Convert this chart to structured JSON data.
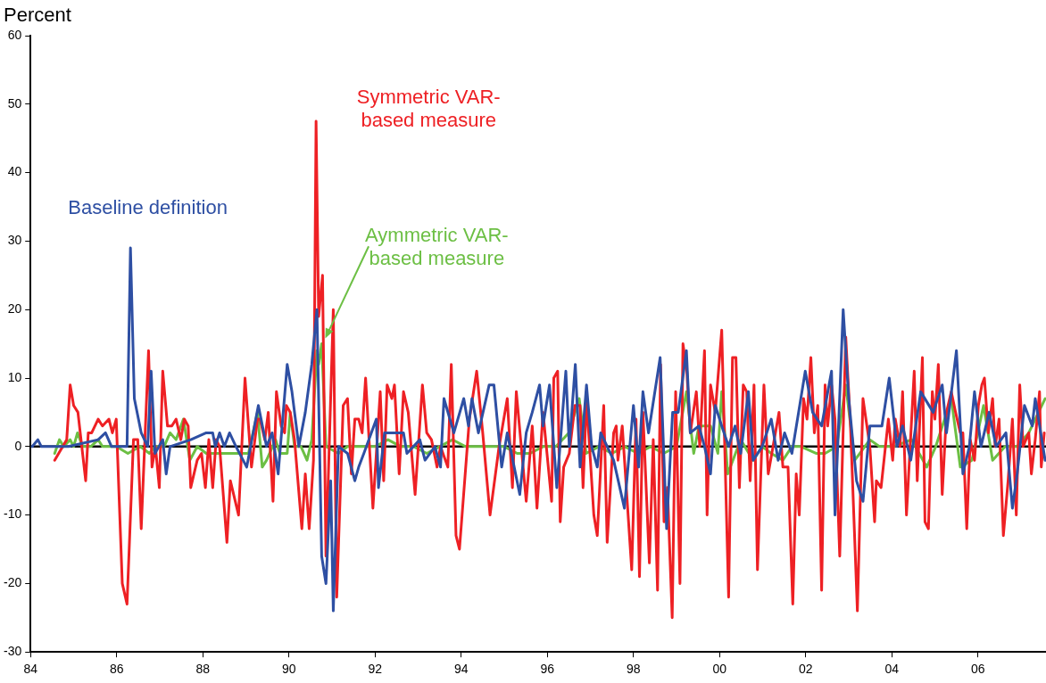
{
  "chart_data": {
    "type": "line",
    "ylabel": "Percent",
    "xlim": [
      1984,
      2007.58
    ],
    "xticks": [
      {
        "value": 1984,
        "label": "84"
      },
      {
        "value": 1986,
        "label": "86"
      },
      {
        "value": 1988,
        "label": "88"
      },
      {
        "value": 1990,
        "label": "90"
      },
      {
        "value": 1992,
        "label": "92"
      },
      {
        "value": 1994,
        "label": "94"
      },
      {
        "value": 1996,
        "label": "96"
      },
      {
        "value": 1998,
        "label": "98"
      },
      {
        "value": 2000,
        "label": "00"
      },
      {
        "value": 2002,
        "label": "02"
      },
      {
        "value": 2004,
        "label": "04"
      },
      {
        "value": 2006,
        "label": "06"
      }
    ],
    "ylim": [
      -30,
      60
    ],
    "yticks": [
      -30,
      -20,
      -10,
      0,
      10,
      20,
      30,
      40,
      50,
      60
    ],
    "grid": false,
    "marker": "none",
    "line_style": "solid",
    "ref_lines": [
      {
        "axis": "y",
        "value": 0,
        "color": "#000000"
      }
    ],
    "series": [
      {
        "name": "Baseline definition",
        "color": "#2e4fa3",
        "x": [
          1984.04,
          1984.17,
          1984.25,
          1984.42,
          1984.52,
          1984.88,
          1985.57,
          1985.74,
          1985.88,
          1986.24,
          1986.32,
          1986.41,
          1986.57,
          1986.72,
          1986.8,
          1986.89,
          1987.07,
          1987.15,
          1987.24,
          1987.72,
          1988.08,
          1988.23,
          1988.29,
          1988.39,
          1988.5,
          1988.62,
          1988.77,
          1989.02,
          1989.29,
          1989.48,
          1989.61,
          1989.75,
          1989.96,
          1990.07,
          1990.23,
          1990.38,
          1990.53,
          1990.65,
          1990.76,
          1990.86,
          1990.97,
          1991.03,
          1991.15,
          1991.36,
          1991.53,
          1991.62,
          1991.74,
          1992.03,
          1992.08,
          1992.22,
          1992.66,
          1992.74,
          1993.04,
          1993.16,
          1993.39,
          1993.52,
          1993.6,
          1993.83,
          1994.06,
          1994.17,
          1994.25,
          1994.4,
          1994.65,
          1994.76,
          1994.94,
          1995.07,
          1995.36,
          1995.51,
          1995.65,
          1995.82,
          1995.9,
          1996.05,
          1996.22,
          1996.43,
          1996.51,
          1996.65,
          1996.76,
          1996.91,
          1997.03,
          1997.16,
          1997.24,
          1997.54,
          1997.79,
          1998.0,
          1998.12,
          1998.22,
          1998.35,
          1998.62,
          1998.77,
          1998.91,
          1999.04,
          1999.23,
          1999.32,
          1999.52,
          1999.65,
          1999.79,
          1999.9,
          2000.05,
          2000.21,
          2000.36,
          2000.49,
          2000.67,
          2000.78,
          2000.99,
          2001.2,
          2001.36,
          2001.51,
          2001.68,
          2001.99,
          2002.16,
          2002.37,
          2002.6,
          2002.68,
          2002.87,
          2003.0,
          2003.18,
          2003.33,
          2003.49,
          2003.77,
          2003.94,
          2004.12,
          2004.25,
          2004.44,
          2004.67,
          2004.96,
          2005.17,
          2005.27,
          2005.5,
          2005.65,
          2005.8,
          2005.92,
          2006.07,
          2006.26,
          2006.42,
          2006.65,
          2006.8,
          2006.91,
          2007.08,
          2007.26,
          2007.33,
          2007.56
        ],
        "values": [
          0,
          1,
          0,
          0,
          0,
          0,
          1,
          2,
          0,
          0,
          29,
          7,
          2,
          0,
          11,
          -1,
          1,
          -4,
          0,
          1,
          2,
          2,
          0,
          2,
          0,
          2,
          0,
          -3,
          6,
          0,
          2,
          -4,
          12,
          8,
          0,
          5,
          12,
          20,
          -16,
          -20,
          -5,
          -24,
          0,
          -1,
          -5,
          -3,
          -1,
          4,
          -6,
          2,
          2,
          -1,
          1,
          -2,
          0,
          -3,
          7,
          2,
          7,
          3,
          7,
          2,
          9,
          9,
          -3,
          2,
          -7,
          2,
          5,
          9,
          3,
          9,
          -6,
          11,
          0,
          12,
          -3,
          9,
          0,
          -3,
          2,
          -2,
          -9,
          6,
          -3,
          8,
          2,
          13,
          -12,
          5,
          5,
          14,
          2,
          3,
          0,
          -4,
          6,
          3,
          0,
          3,
          -1,
          8,
          -2,
          0,
          4,
          -2,
          2,
          -1,
          11,
          5,
          3,
          11,
          -10,
          20,
          7,
          -5,
          -8,
          3,
          3,
          10,
          0,
          3,
          -2,
          8,
          5,
          9,
          2,
          14,
          -4,
          0,
          8,
          0,
          5,
          0,
          2,
          -9,
          -4,
          6,
          3,
          7,
          -2
        ]
      },
      {
        "name": "Symmetric VAR-based measure",
        "color": "#ee2024",
        "x": [
          1984.56,
          1984.84,
          1984.92,
          1985.0,
          1985.1,
          1985.28,
          1985.34,
          1985.42,
          1985.57,
          1985.67,
          1985.82,
          1985.9,
          1985.99,
          1986.13,
          1986.24,
          1986.39,
          1986.49,
          1986.57,
          1986.74,
          1986.82,
          1986.9,
          1986.99,
          1987.07,
          1987.18,
          1987.28,
          1987.38,
          1987.49,
          1987.57,
          1987.66,
          1987.72,
          1987.87,
          1987.97,
          1988.06,
          1988.14,
          1988.23,
          1988.31,
          1988.39,
          1988.56,
          1988.64,
          1988.83,
          1988.98,
          1989.13,
          1989.27,
          1989.33,
          1989.44,
          1989.52,
          1989.63,
          1989.71,
          1989.82,
          1989.9,
          1989.94,
          1990.03,
          1990.13,
          1990.3,
          1990.38,
          1990.47,
          1990.57,
          1990.63,
          1990.69,
          1990.78,
          1990.86,
          1991.03,
          1991.11,
          1991.26,
          1991.36,
          1991.45,
          1991.53,
          1991.62,
          1991.7,
          1991.78,
          1991.95,
          1992.12,
          1992.2,
          1992.28,
          1992.39,
          1992.45,
          1992.56,
          1992.66,
          1992.77,
          1992.93,
          1993.1,
          1993.2,
          1993.31,
          1993.44,
          1993.52,
          1993.69,
          1993.77,
          1993.88,
          1993.96,
          1994.19,
          1994.36,
          1994.5,
          1994.67,
          1994.88,
          1995.07,
          1995.19,
          1995.28,
          1995.51,
          1995.65,
          1995.76,
          1995.9,
          1996.1,
          1996.15,
          1996.24,
          1996.3,
          1996.38,
          1996.51,
          1996.64,
          1996.76,
          1996.83,
          1996.91,
          1997.08,
          1997.16,
          1997.31,
          1997.39,
          1997.54,
          1997.6,
          1997.64,
          1997.74,
          1997.96,
          1998.06,
          1998.14,
          1998.22,
          1998.37,
          1998.46,
          1998.56,
          1998.63,
          1998.71,
          1998.79,
          1998.9,
          1998.98,
          1999.08,
          1999.15,
          1999.24,
          1999.32,
          1999.46,
          1999.54,
          1999.65,
          1999.71,
          1999.79,
          1999.9,
          2000.05,
          2000.21,
          2000.3,
          2000.38,
          2000.46,
          2000.55,
          2000.63,
          2000.71,
          2000.8,
          2000.88,
          2001.03,
          2001.13,
          2001.38,
          2001.47,
          2001.59,
          2001.7,
          2001.78,
          2001.85,
          2001.95,
          2002.03,
          2002.12,
          2002.2,
          2002.28,
          2002.37,
          2002.45,
          2002.51,
          2002.6,
          2002.68,
          2002.79,
          2002.93,
          2003.04,
          2003.2,
          2003.33,
          2003.49,
          2003.6,
          2003.64,
          2003.75,
          2003.92,
          2004.02,
          2004.08,
          2004.19,
          2004.25,
          2004.34,
          2004.52,
          2004.59,
          2004.71,
          2004.77,
          2004.85,
          2004.94,
          2005.0,
          2005.08,
          2005.17,
          2005.27,
          2005.38,
          2005.48,
          2005.59,
          2005.65,
          2005.74,
          2005.82,
          2005.92,
          2006.01,
          2006.09,
          2006.15,
          2006.24,
          2006.34,
          2006.4,
          2006.49,
          2006.59,
          2006.7,
          2006.8,
          2006.89,
          2006.97,
          2007.05,
          2007.18,
          2007.24,
          2007.33,
          2007.43,
          2007.47,
          2007.54
        ],
        "values": [
          -2,
          1,
          9,
          6,
          5,
          -5,
          2,
          2,
          4,
          3,
          4,
          2,
          4,
          -20,
          -23,
          1,
          1,
          -12,
          14,
          -3,
          0,
          -6,
          11,
          3,
          3,
          4,
          1,
          4,
          3,
          -6,
          -2,
          -1,
          -6,
          1,
          -6,
          1,
          0,
          -14,
          -5,
          -10,
          10,
          -3,
          4,
          4,
          1,
          5,
          -8,
          8,
          3,
          2,
          6,
          5,
          1,
          -12,
          -4,
          -12,
          -2,
          47.5,
          19,
          25,
          -16,
          20,
          -22,
          6,
          7,
          -4,
          4,
          4,
          2,
          10,
          -9,
          8,
          -5,
          9,
          7,
          9,
          -4,
          8,
          5,
          -7,
          9,
          2,
          1,
          -3,
          0,
          -3,
          12,
          -13,
          -15,
          4,
          11,
          2,
          -10,
          0,
          7,
          -6,
          8,
          -8,
          3,
          -9,
          5,
          -8,
          10,
          11,
          -11,
          -3,
          -1,
          6,
          6,
          -6,
          7,
          -10,
          -13,
          6,
          -14,
          2,
          3,
          -2,
          3,
          -18,
          4,
          -19,
          5,
          -17,
          1,
          -21,
          12,
          -11,
          -6,
          -25,
          8,
          -20,
          15,
          11,
          2,
          8,
          0,
          14,
          -10,
          9,
          5,
          17,
          -22,
          13,
          13,
          -6,
          9,
          8,
          -5,
          9,
          -18,
          9,
          -4,
          5,
          -3,
          -3,
          -23,
          -4,
          -10,
          7,
          4,
          13,
          2,
          6,
          -21,
          9,
          3,
          9,
          4,
          -16,
          16,
          3,
          -24,
          7,
          0,
          -11,
          -5,
          -6,
          4,
          -2,
          4,
          0,
          8,
          -10,
          11,
          -5,
          13,
          -11,
          -12,
          8,
          4,
          12,
          -7,
          5,
          8,
          5,
          2,
          2,
          -12,
          1,
          -2,
          6,
          9,
          10,
          2,
          7,
          0,
          4,
          -13,
          -5,
          4,
          -10,
          9,
          0,
          2,
          -4,
          1,
          8,
          -3,
          2
        ]
      },
      {
        "name": "Aymmetric VAR-based measure",
        "color": "#6cbf44",
        "x": [
          1984.56,
          1984.67,
          1984.77,
          1984.92,
          1985.0,
          1985.09,
          1985.21,
          1985.4,
          1985.57,
          1985.67,
          1985.99,
          1986.26,
          1986.55,
          1986.76,
          1986.89,
          1987.1,
          1987.24,
          1987.38,
          1987.55,
          1987.7,
          1987.87,
          1988.08,
          1988.35,
          1988.64,
          1988.77,
          1989.06,
          1989.27,
          1989.38,
          1989.48,
          1989.69,
          1989.79,
          1989.96,
          1990.03,
          1990.13,
          1990.28,
          1990.42,
          1990.53,
          1990.65,
          1990.69,
          1990.76,
          1990.86,
          1991.15,
          1991.36,
          1991.57,
          1991.78,
          1992.0,
          1992.3,
          1992.6,
          1992.9,
          1993.2,
          1993.5,
          1993.8,
          1994.1,
          1994.4,
          1994.7,
          1995.0,
          1995.3,
          1995.6,
          1995.9,
          1996.2,
          1996.5,
          1996.74,
          1996.9,
          1997.2,
          1997.5,
          1997.8,
          1998.1,
          1998.4,
          1998.7,
          1999.0,
          1999.23,
          1999.4,
          1999.52,
          1999.79,
          1999.96,
          2000.05,
          2000.19,
          2000.49,
          2000.78,
          2000.99,
          2001.2,
          2001.47,
          2001.68,
          2001.89,
          2002.24,
          2002.45,
          2002.72,
          2002.93,
          2003.14,
          2003.49,
          2003.71,
          2004.04,
          2004.46,
          2004.81,
          2005.02,
          2005.38,
          2005.59,
          2005.86,
          2006.13,
          2006.34,
          2006.63,
          2006.91,
          2007.18,
          2007.56
        ],
        "values": [
          -1,
          1,
          0,
          1,
          0,
          2,
          0,
          0,
          1,
          0,
          0,
          -1,
          0,
          -1,
          0,
          0,
          2,
          1,
          4,
          -2,
          0,
          -1,
          -1,
          -1,
          -1,
          -1,
          5,
          -3,
          -2,
          1,
          -1,
          -1,
          5,
          0,
          0,
          -2,
          1,
          14,
          12,
          15,
          0,
          -1,
          0,
          0,
          0,
          0,
          1,
          0,
          0,
          -1,
          0,
          1,
          0,
          0,
          0,
          0,
          -1,
          -1,
          0,
          0,
          2,
          7,
          -1,
          0,
          -1,
          0,
          -1,
          0,
          -1,
          0,
          8,
          -1,
          3,
          3,
          -1,
          8,
          -4,
          1,
          -2,
          0,
          -1,
          -2,
          0,
          0,
          -1,
          -1,
          0,
          9,
          -2,
          1,
          0,
          0,
          1,
          -3,
          0,
          7,
          -3,
          -2,
          6,
          -2,
          0,
          0,
          2,
          7
        ]
      }
    ]
  }
}
